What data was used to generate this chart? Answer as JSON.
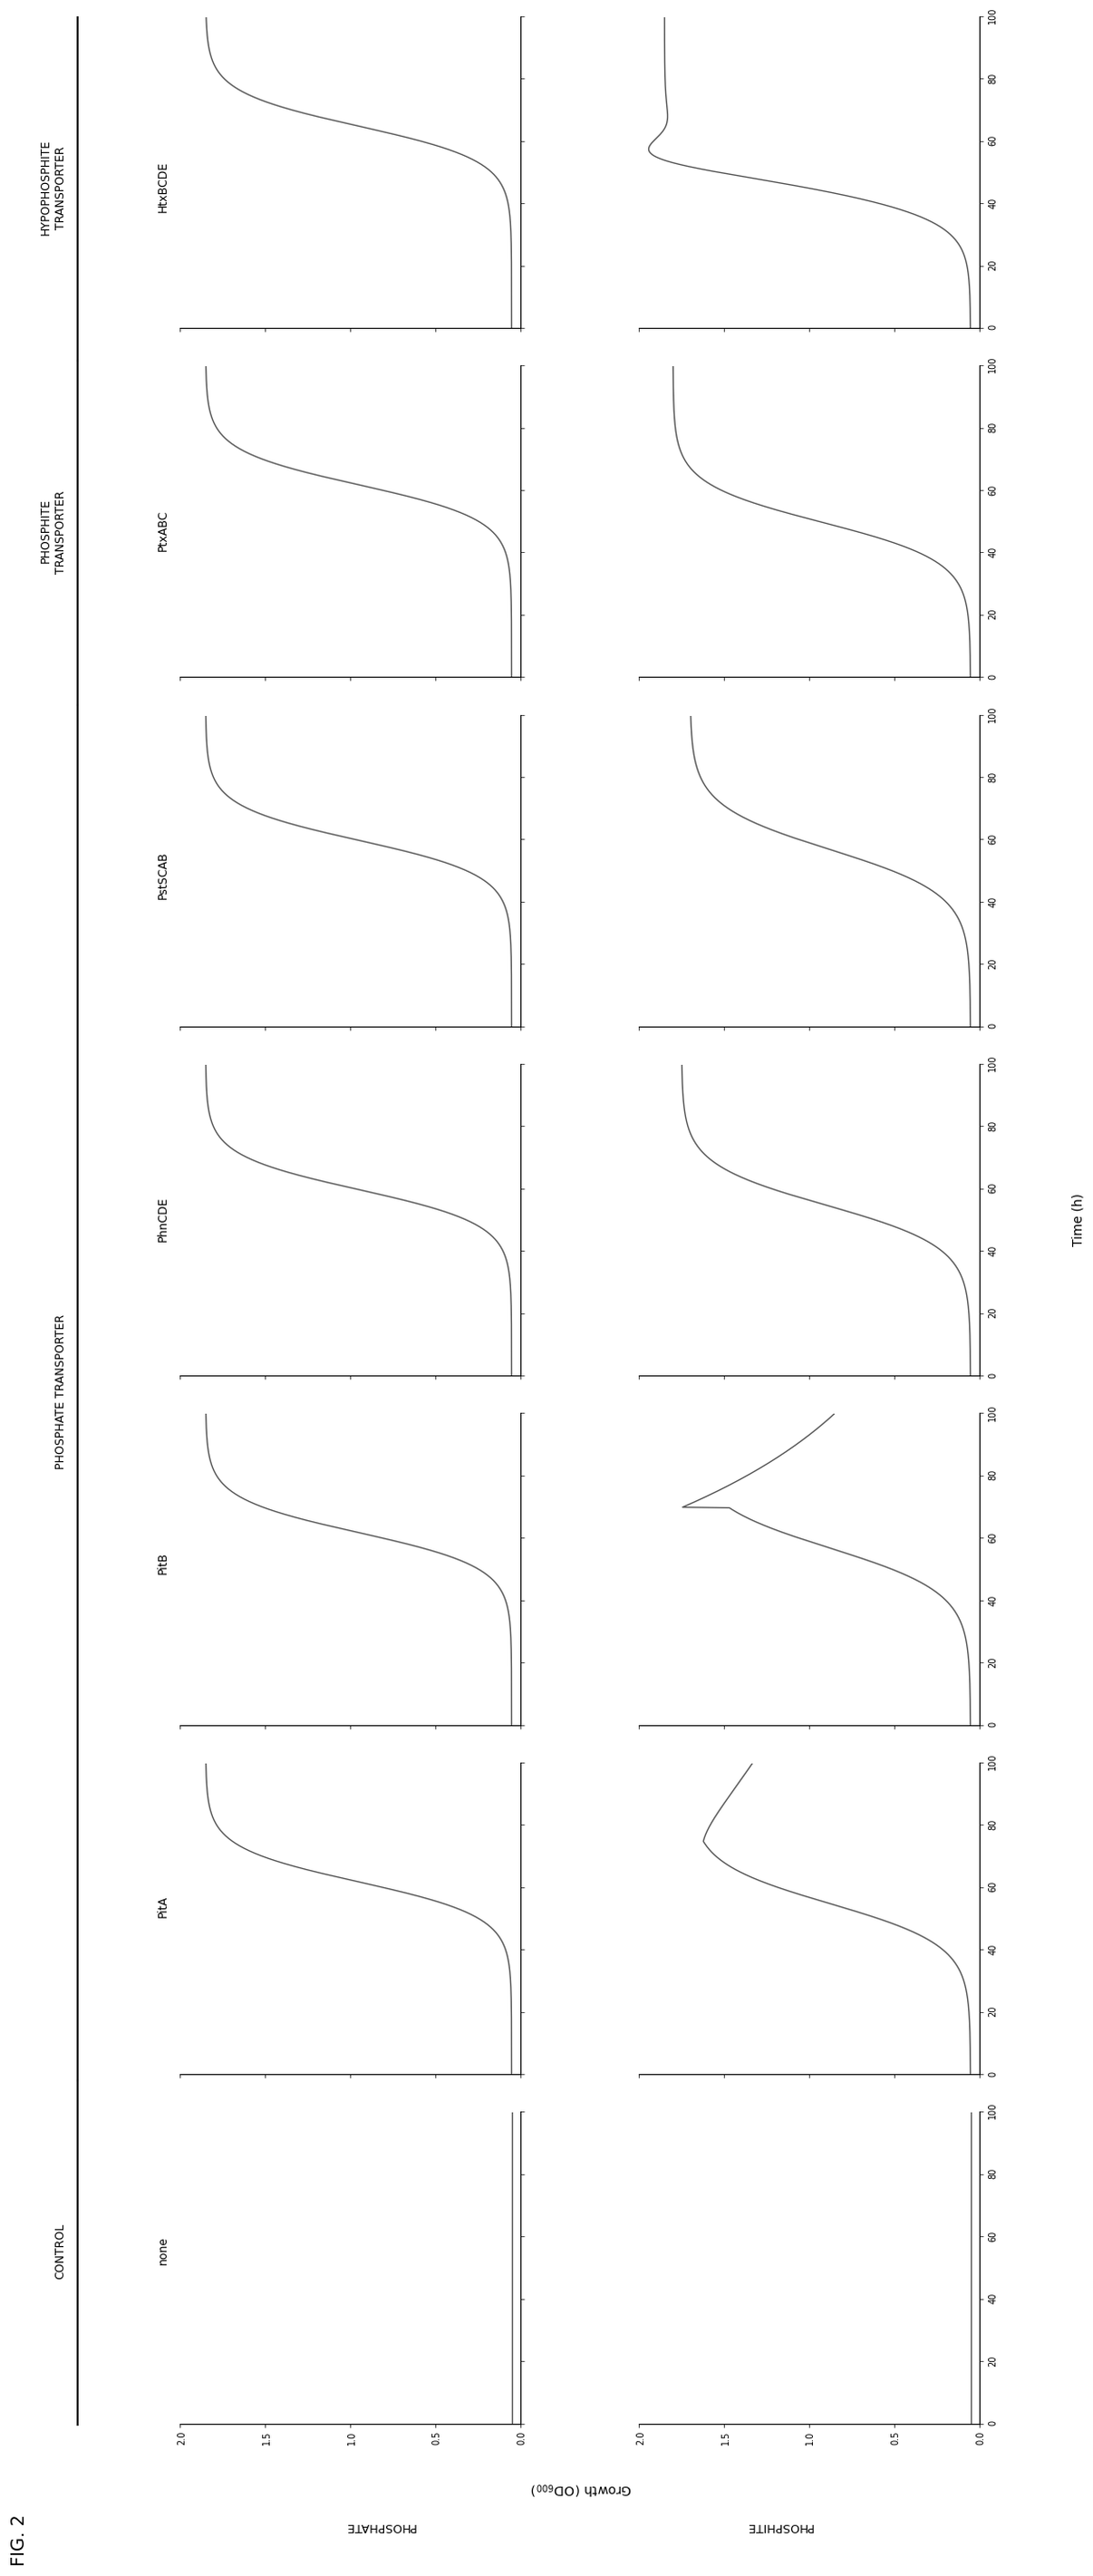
{
  "fig_label": "FIG. 2",
  "columns": [
    "none",
    "PitA",
    "PitB",
    "PhnCDE",
    "PstSCAB",
    "PtxABC",
    "HtxBCDE"
  ],
  "col_headers_grouped": [
    {
      "label": "CONTROL",
      "cols": [
        0
      ]
    },
    {
      "label": "PHOSPHATE TRANSPORTER",
      "cols": [
        1,
        2,
        3,
        4
      ]
    },
    {
      "label": "PHOSPHITE\nTRANSPORTER",
      "cols": [
        5
      ]
    },
    {
      "label": "HYPOPHOSPHITE\nTRANSPORTER",
      "cols": [
        6
      ]
    }
  ],
  "row_labels": [
    "PHOSPHATE",
    "PHOSPHITE"
  ],
  "background_color": "#ffffff",
  "line_color": "#555555",
  "line_width": 1.0,
  "xlabel": "Time (h)",
  "ylabel": "Growth (OD_{600})"
}
